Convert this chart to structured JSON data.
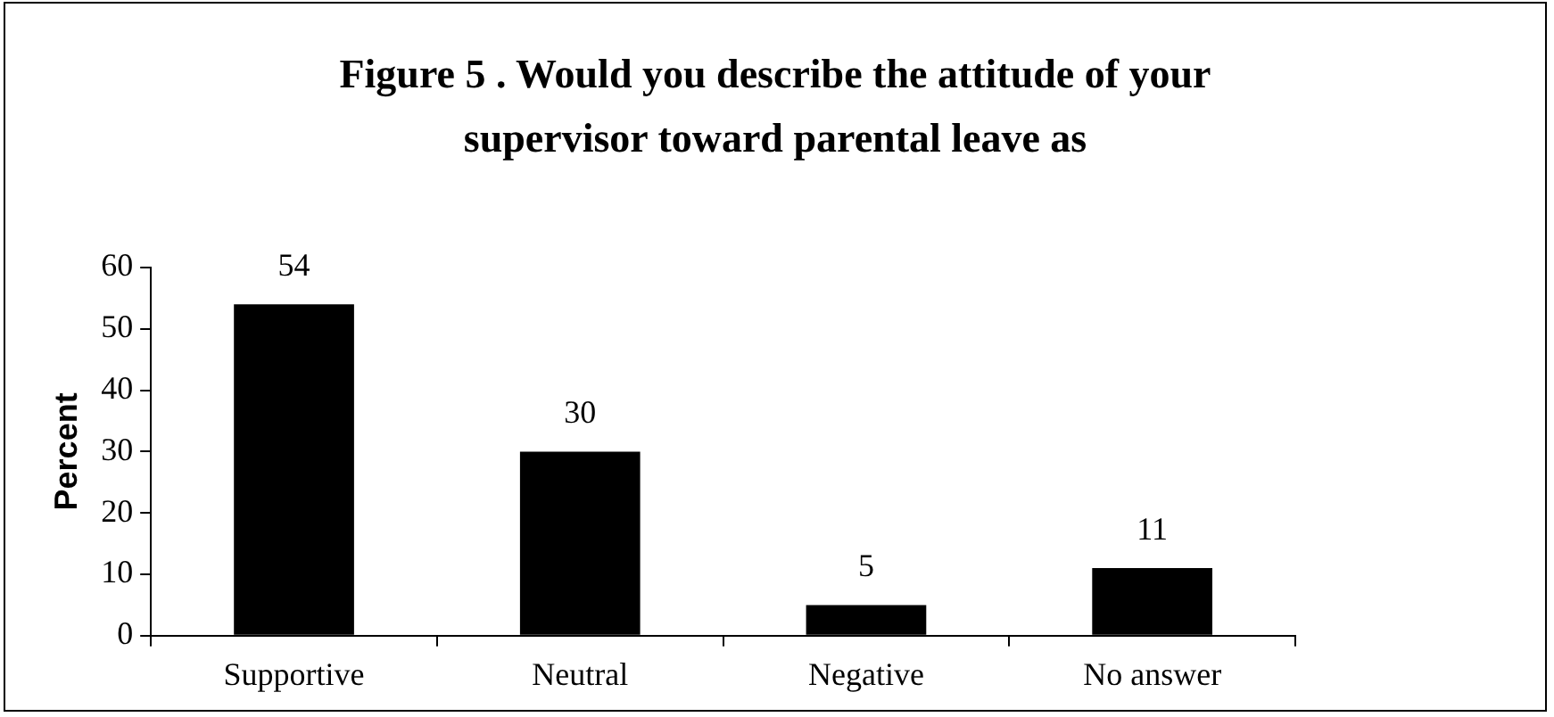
{
  "chart_data": {
    "type": "bar",
    "title": "Figure 5 . Would you describe the attitude of your supervisor toward parental leave as",
    "ylabel": "Percent",
    "categories": [
      "Supportive",
      "Neutral",
      "Negative",
      "No answer"
    ],
    "values": [
      54,
      30,
      5,
      11
    ],
    "color": "#000000",
    "ylim": [
      0,
      60
    ],
    "yticks": [
      0,
      10,
      20,
      30,
      40,
      50,
      60
    ],
    "grid": false,
    "legend": false,
    "data_labels": true
  }
}
